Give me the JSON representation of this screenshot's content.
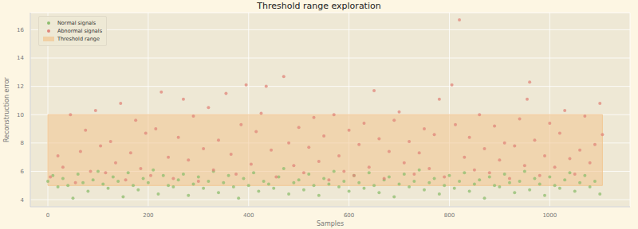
{
  "chart_data": {
    "type": "scatter",
    "title": "Threshold range exploration",
    "x_label": "Samples",
    "y_label": "Reconstruction error",
    "xlim": [
      -35,
      1160
    ],
    "xticks": [
      0,
      200,
      400,
      600,
      800,
      1000
    ],
    "ylim": [
      3.5,
      17.2
    ],
    "yticks": [
      4,
      6,
      8,
      10,
      12,
      14,
      16
    ],
    "grid": true,
    "legend": "upper left",
    "series": [
      {
        "name": "Normal signals",
        "type": "scatter",
        "marker": "o",
        "color": "#8dbd6e",
        "x": [
          0,
          10,
          20,
          30,
          40,
          50,
          60,
          70,
          80,
          90,
          100,
          110,
          120,
          130,
          140,
          150,
          160,
          170,
          180,
          190,
          200,
          210,
          220,
          230,
          240,
          250,
          260,
          270,
          280,
          290,
          300,
          310,
          320,
          330,
          340,
          350,
          360,
          370,
          380,
          390,
          400,
          410,
          420,
          430,
          440,
          450,
          460,
          470,
          480,
          490,
          500,
          510,
          520,
          530,
          540,
          550,
          560,
          570,
          580,
          590,
          600,
          610,
          620,
          630,
          640,
          650,
          660,
          670,
          680,
          690,
          700,
          710,
          720,
          730,
          740,
          750,
          760,
          770,
          780,
          790,
          800,
          810,
          820,
          830,
          840,
          850,
          860,
          870,
          880,
          890,
          900,
          910,
          920,
          930,
          940,
          950,
          960,
          970,
          980,
          990,
          1000,
          1010,
          1020,
          1030,
          1040,
          1050,
          1060,
          1070,
          1080,
          1090,
          1100
        ],
        "values": [
          5.3,
          5.7,
          4.9,
          5.5,
          5.0,
          4.1,
          5.8,
          5.2,
          4.6,
          5.4,
          6.0,
          5.1,
          4.8,
          5.6,
          5.3,
          4.2,
          5.9,
          5.0,
          4.7,
          5.5,
          5.2,
          6.1,
          4.4,
          5.7,
          5.0,
          4.9,
          5.4,
          5.8,
          4.3,
          5.1,
          5.6,
          4.8,
          5.3,
          6.0,
          4.5,
          5.2,
          5.7,
          4.9,
          4.1,
          5.5,
          5.0,
          5.9,
          4.6,
          5.3,
          5.1,
          4.8,
          5.6,
          6.2,
          4.4,
          5.2,
          5.4,
          4.7,
          5.8,
          5.0,
          4.3,
          5.5,
          5.1,
          6.0,
          4.9,
          5.3,
          4.6,
          5.7,
          5.2,
          4.8,
          5.9,
          5.0,
          4.5,
          5.4,
          5.6,
          4.2,
          5.1,
          5.8,
          4.9,
          5.3,
          6.1,
          4.7,
          5.2,
          5.5,
          4.4,
          5.0,
          5.7,
          4.8,
          5.3,
          5.9,
          4.6,
          5.1,
          5.4,
          4.1,
          5.6,
          5.0,
          4.9,
          5.8,
          5.2,
          4.5,
          5.3,
          6.0,
          4.7,
          5.5,
          5.1,
          4.3,
          5.6,
          5.0,
          4.8,
          5.4,
          5.9,
          4.6,
          5.2,
          5.7,
          4.9,
          5.3,
          4.4
        ]
      },
      {
        "name": "Abnormal signals",
        "type": "scatter",
        "marker": "o",
        "color": "#e0857a",
        "x": [
          5,
          20,
          30,
          45,
          55,
          65,
          75,
          85,
          95,
          105,
          115,
          125,
          135,
          145,
          155,
          165,
          175,
          185,
          195,
          205,
          215,
          226,
          240,
          250,
          260,
          270,
          280,
          290,
          300,
          310,
          320,
          330,
          340,
          355,
          365,
          375,
          385,
          395,
          405,
          415,
          425,
          435,
          445,
          455,
          470,
          480,
          490,
          500,
          510,
          520,
          530,
          540,
          550,
          560,
          570,
          580,
          590,
          600,
          610,
          620,
          630,
          640,
          650,
          660,
          670,
          680,
          690,
          700,
          710,
          720,
          730,
          740,
          750,
          760,
          770,
          780,
          790,
          805,
          812,
          820,
          830,
          840,
          850,
          860,
          870,
          880,
          890,
          900,
          910,
          920,
          930,
          940,
          950,
          955,
          960,
          970,
          980,
          990,
          1000,
          1010,
          1020,
          1030,
          1040,
          1050,
          1060,
          1070,
          1080,
          1090,
          1100,
          1105
        ],
        "values": [
          5.6,
          7.1,
          6.3,
          10.0,
          5.2,
          7.4,
          8.9,
          6.0,
          10.3,
          7.8,
          5.9,
          8.1,
          6.6,
          10.8,
          5.4,
          7.3,
          9.6,
          6.2,
          8.7,
          5.7,
          9.0,
          11.6,
          7.0,
          5.5,
          8.4,
          11.1,
          6.8,
          9.9,
          5.3,
          7.6,
          10.5,
          6.1,
          8.2,
          11.5,
          7.2,
          5.8,
          9.3,
          12.1,
          6.5,
          8.8,
          10.1,
          12.0,
          7.5,
          5.6,
          12.7,
          8.0,
          6.4,
          9.1,
          5.9,
          7.7,
          9.8,
          6.7,
          8.5,
          5.4,
          10.0,
          7.1,
          6.0,
          8.9,
          5.7,
          7.9,
          9.4,
          6.3,
          11.7,
          8.3,
          5.5,
          7.4,
          9.6,
          10.2,
          6.6,
          8.1,
          5.8,
          7.3,
          9.0,
          6.2,
          8.6,
          11.1,
          5.6,
          12.1,
          9.3,
          16.7,
          7.0,
          8.4,
          6.1,
          10.0,
          7.6,
          5.9,
          9.2,
          6.8,
          8.0,
          5.5,
          7.8,
          9.7,
          6.4,
          11.1,
          12.3,
          8.2,
          5.7,
          7.1,
          9.4,
          6.3,
          8.7,
          10.3,
          6.9,
          5.8,
          7.5,
          9.9,
          6.6,
          7.9,
          10.8,
          8.6
        ]
      },
      {
        "name": "Threshold range",
        "type": "area",
        "color": "#f2c58f",
        "x": [
          0,
          1105
        ],
        "values": [
          10,
          10
        ],
        "lower": [
          5,
          5
        ]
      }
    ]
  }
}
